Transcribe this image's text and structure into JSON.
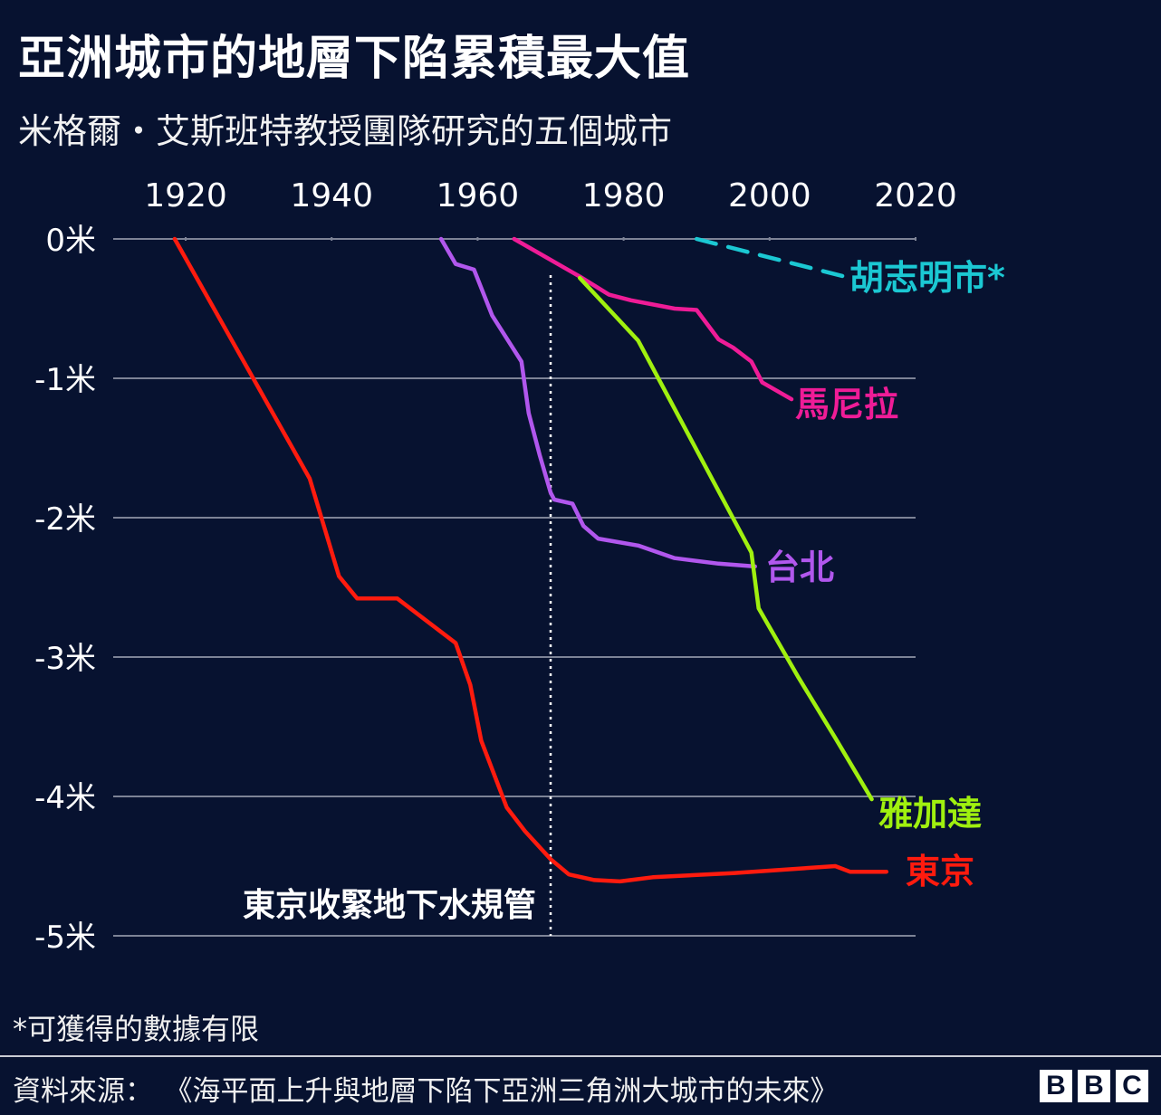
{
  "header": {
    "title": "亞洲城市的地層下陷累積最大值",
    "subtitle": "米格爾・艾斯班特教授團隊研究的五個城市"
  },
  "footer": {
    "footnote": "*可獲得的數據有限",
    "source_label": "資料來源：",
    "source_text": "《海平面上升與地層下陷下亞洲三角洲大城市的未來》",
    "logo_letters": [
      "B",
      "B",
      "C"
    ]
  },
  "chart_data": {
    "type": "line",
    "xlim": [
      1909,
      2020
    ],
    "ylim": [
      -5,
      0
    ],
    "x_ticks": [
      1920,
      1940,
      1960,
      1980,
      2000,
      2020
    ],
    "y_ticks": [
      {
        "value": 0,
        "label": "0米"
      },
      {
        "value": -1,
        "label": "-1米"
      },
      {
        "value": -2,
        "label": "-2米"
      },
      {
        "value": -3,
        "label": "-3米"
      },
      {
        "value": -4,
        "label": "-4米"
      },
      {
        "value": -5,
        "label": "-5米"
      }
    ],
    "grid": true,
    "annotation": {
      "x": 1970,
      "label": "東京收緊地下水規管"
    },
    "series": [
      {
        "name": "東京",
        "color": "#ff1b0e",
        "dashed": false,
        "points": [
          [
            1918.5,
            0
          ],
          [
            1937,
            -1.72
          ],
          [
            1941,
            -2.42
          ],
          [
            1943.5,
            -2.58
          ],
          [
            1949,
            -2.58
          ],
          [
            1957,
            -2.9
          ],
          [
            1959,
            -3.2
          ],
          [
            1960.5,
            -3.6
          ],
          [
            1964,
            -4.08
          ],
          [
            1966.5,
            -4.25
          ],
          [
            1970,
            -4.45
          ],
          [
            1972.5,
            -4.56
          ],
          [
            1976,
            -4.6
          ],
          [
            1979.5,
            -4.61
          ],
          [
            1984,
            -4.58
          ],
          [
            1995,
            -4.55
          ],
          [
            2009,
            -4.5
          ],
          [
            2011,
            -4.54
          ],
          [
            2016,
            -4.54
          ]
        ]
      },
      {
        "name": "台北",
        "color": "#b157ed",
        "dashed": false,
        "points": [
          [
            1955,
            0
          ],
          [
            1957,
            -0.18
          ],
          [
            1959.5,
            -0.22
          ],
          [
            1962,
            -0.55
          ],
          [
            1966,
            -0.88
          ],
          [
            1967,
            -1.25
          ],
          [
            1968.5,
            -1.55
          ],
          [
            1970,
            -1.82
          ],
          [
            1970.5,
            -1.87
          ],
          [
            1973,
            -1.9
          ],
          [
            1974.5,
            -2.06
          ],
          [
            1976.5,
            -2.15
          ],
          [
            1982,
            -2.2
          ],
          [
            1987,
            -2.29
          ],
          [
            1993,
            -2.33
          ],
          [
            1998,
            -2.35
          ]
        ]
      },
      {
        "name": "馬尼拉",
        "color": "#ef1c97",
        "dashed": false,
        "points": [
          [
            1965,
            0
          ],
          [
            1974,
            -0.27
          ],
          [
            1978,
            -0.4
          ],
          [
            1981,
            -0.44
          ],
          [
            1987,
            -0.5
          ],
          [
            1990,
            -0.51
          ],
          [
            1993,
            -0.72
          ],
          [
            1995,
            -0.78
          ],
          [
            1997.5,
            -0.88
          ],
          [
            1999,
            -1.03
          ],
          [
            2003,
            -1.15
          ]
        ]
      },
      {
        "name": "雅加達",
        "color": "#a0f00f",
        "dashed": false,
        "points": [
          [
            1974,
            -0.28
          ],
          [
            1982,
            -0.73
          ],
          [
            1997.5,
            -2.25
          ],
          [
            1998.5,
            -2.65
          ],
          [
            2004,
            -3.15
          ],
          [
            2009,
            -3.58
          ],
          [
            2014,
            -4.02
          ]
        ]
      },
      {
        "name": "胡志明市*",
        "color": "#1bc8d3",
        "dashed": true,
        "points": [
          [
            1990,
            0
          ],
          [
            2011,
            -0.28
          ]
        ]
      }
    ]
  }
}
